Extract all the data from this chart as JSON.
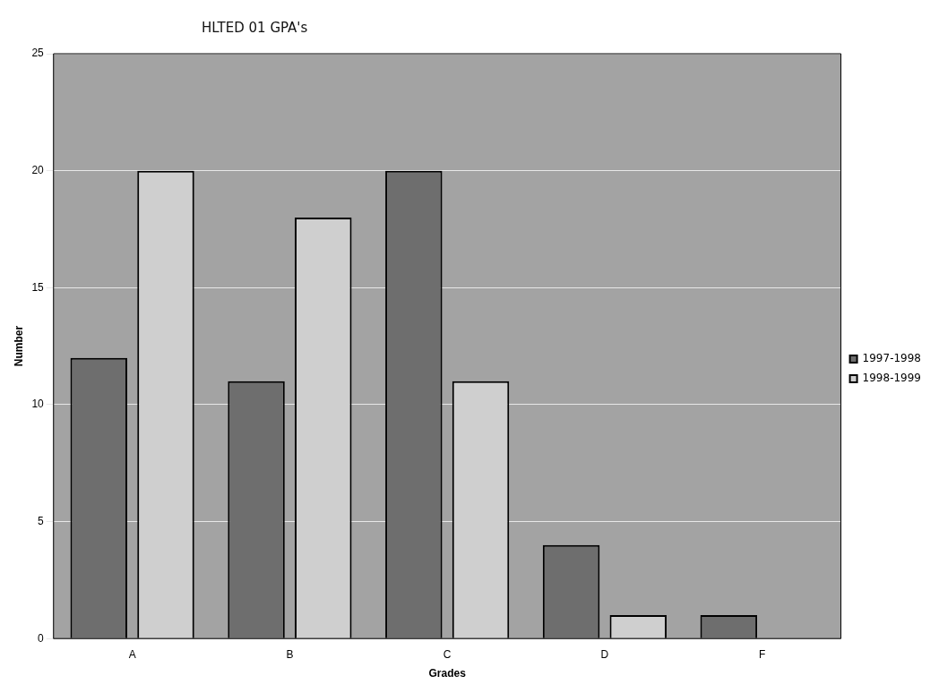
{
  "chart_data": {
    "type": "bar",
    "title": "HLTED 01 GPA's",
    "xlabel": "Grades",
    "ylabel": "Number",
    "categories": [
      "A",
      "B",
      "C",
      "D",
      "F"
    ],
    "series": [
      {
        "name": "1997-1998",
        "color": "#6e6e6e",
        "values": [
          12,
          11,
          20,
          4,
          1
        ]
      },
      {
        "name": "1998-1999",
        "color": "#cfcfcf",
        "values": [
          20,
          18,
          11,
          1,
          0
        ]
      }
    ],
    "ylim": [
      0,
      25
    ],
    "yticks": [
      0,
      5,
      10,
      15,
      20,
      25
    ],
    "grid": "y",
    "legend": "right"
  }
}
